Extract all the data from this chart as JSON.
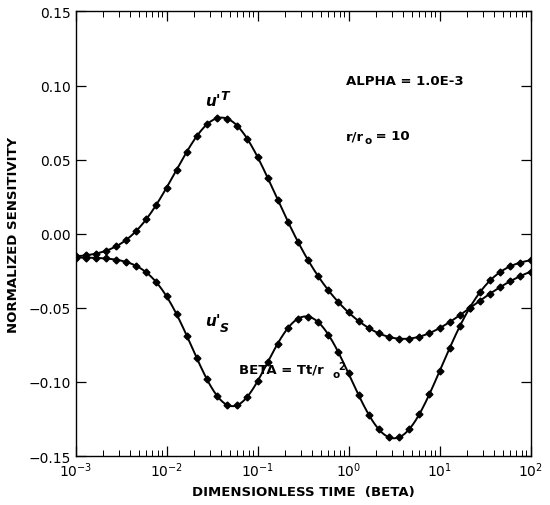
{
  "xlabel": "DIMENSIONLESS TIME  (BETA)",
  "ylabel": "NORMALIZED SENSITIVITY",
  "ylim": [
    -0.15,
    0.15
  ],
  "yticks": [
    -0.15,
    -0.1,
    -0.05,
    0.0,
    0.05,
    0.1,
    0.15
  ],
  "line_color": "#000000",
  "bg_color": "#ffffff",
  "marker": "D",
  "marker_size": 3.5,
  "linewidth": 1.4,
  "n_markers": 46,
  "uT_gauss": [
    {
      "amp": 0.096,
      "ctr": -1.38,
      "wid": 0.52
    },
    {
      "amp": -0.055,
      "ctr": 0.6,
      "wid": 0.75
    }
  ],
  "uT_base": -0.016,
  "uS_gauss": [
    {
      "amp": -0.1,
      "ctr": -1.28,
      "wid": 0.44
    },
    {
      "amp": -0.122,
      "ctr": 0.5,
      "wid": 0.52
    }
  ],
  "uS_base": -0.016,
  "alpha_text": "ALPHA = 1.0E-3",
  "r_text": "r/r",
  "r_sub": "o",
  "r_val": " = 10",
  "beta_text": "BETA = Tt/r",
  "beta_sub": "o",
  "beta_sup": "2"
}
